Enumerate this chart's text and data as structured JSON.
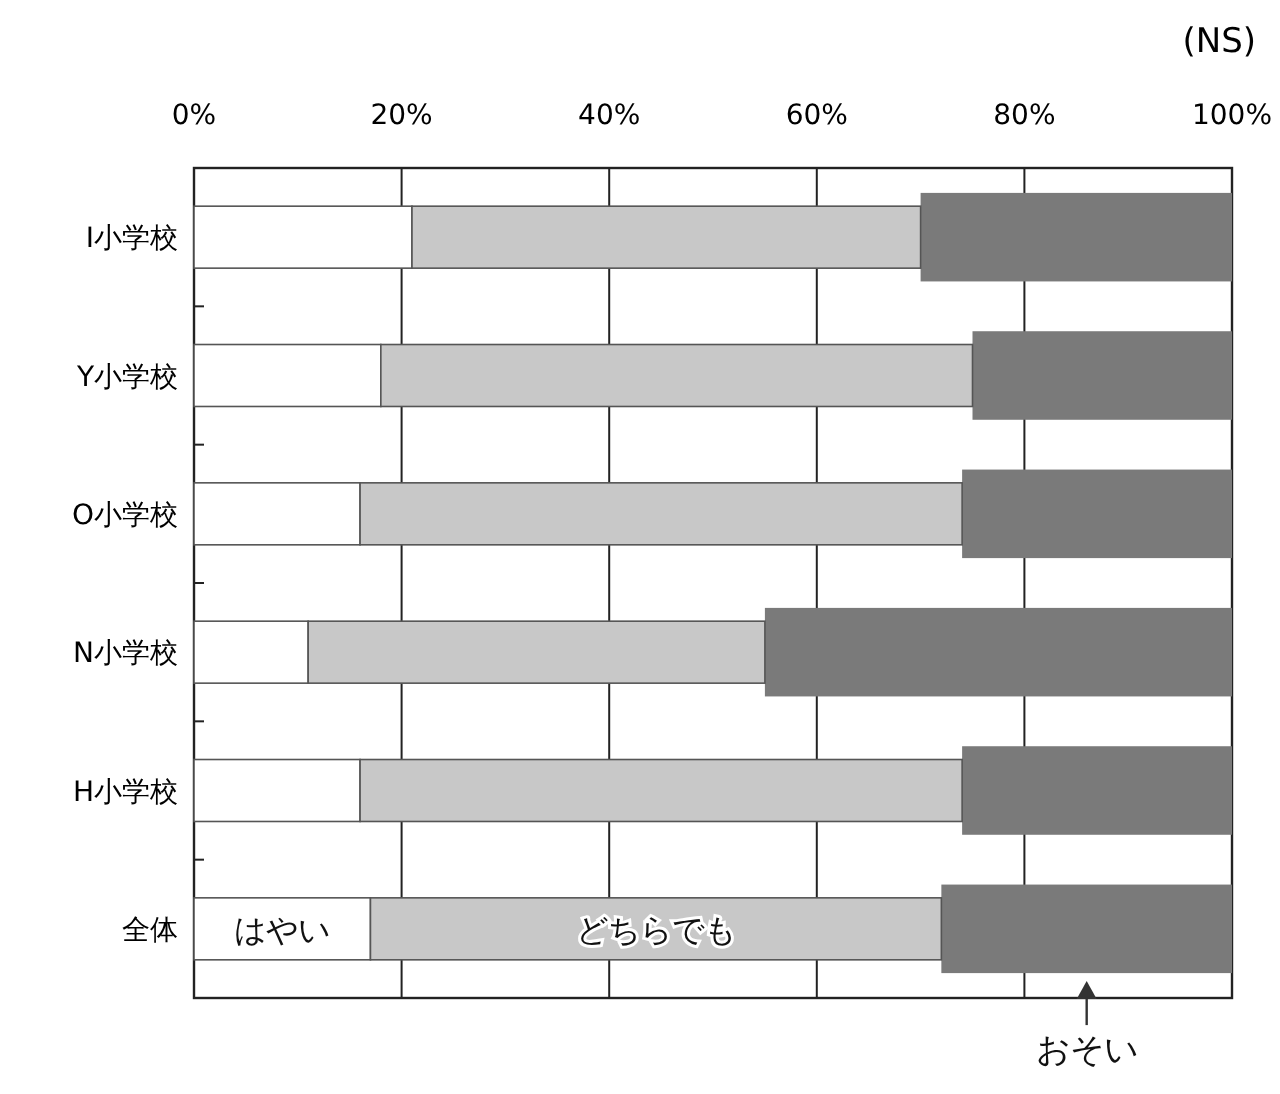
{
  "chart_data": {
    "type": "bar",
    "orientation": "horizontal",
    "stacked": true,
    "categories": [
      "I小学校",
      "Y小学校",
      "O小学校",
      "N小学校",
      "H小学校",
      "全体"
    ],
    "series": [
      {
        "name": "はやい",
        "color": "#ffffff",
        "values": [
          21,
          18,
          16,
          11,
          16,
          17
        ]
      },
      {
        "name": "どちらでも",
        "color": "#c8c8c8",
        "values": [
          49,
          57,
          58,
          44,
          58,
          55
        ]
      },
      {
        "name": "おそい",
        "color": "#7a7a7a",
        "values": [
          30,
          25,
          26,
          45,
          26,
          28
        ]
      }
    ],
    "xlim": [
      0,
      100
    ],
    "xticks": [
      {
        "value": 0,
        "label": "0%"
      },
      {
        "value": 20,
        "label": "20%"
      },
      {
        "value": 40,
        "label": "40%"
      },
      {
        "value": 60,
        "label": "60%"
      },
      {
        "value": 80,
        "label": "80%"
      },
      {
        "value": 100,
        "label": "100%"
      }
    ],
    "grid": "x",
    "legend": false,
    "annotations": [
      "(NS)"
    ]
  }
}
